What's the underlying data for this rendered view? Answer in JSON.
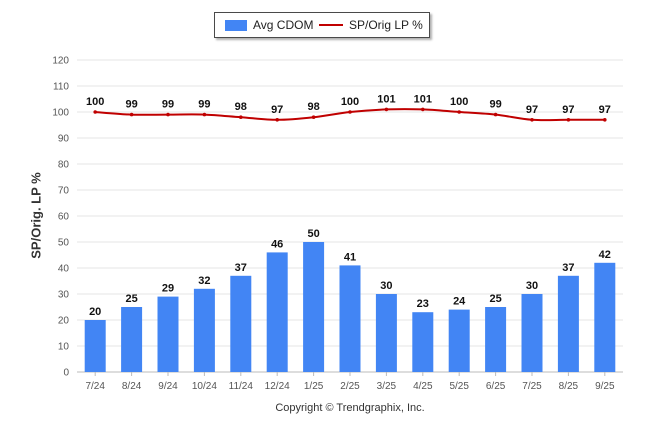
{
  "chart_data": {
    "type": "bar",
    "categories": [
      "7/24",
      "8/24",
      "9/24",
      "10/24",
      "11/24",
      "12/24",
      "1/25",
      "2/25",
      "3/25",
      "4/25",
      "5/25",
      "6/25",
      "7/25",
      "8/25",
      "9/25"
    ],
    "series": [
      {
        "name": "Avg CDOM",
        "kind": "bar",
        "color": "#4285f4",
        "values": [
          20,
          25,
          29,
          32,
          37,
          46,
          50,
          41,
          30,
          23,
          24,
          25,
          30,
          37,
          42
        ]
      },
      {
        "name": "SP/Orig LP %",
        "kind": "line",
        "color": "#c00000",
        "values": [
          100,
          99,
          99,
          99,
          98,
          97,
          98,
          100,
          101,
          101,
          100,
          99,
          97,
          97,
          97
        ]
      }
    ],
    "ylabel": "SP/Orig. LP %",
    "xlabel": "",
    "ylim": [
      0,
      120
    ],
    "yticks": [
      0,
      10,
      20,
      30,
      40,
      50,
      60,
      70,
      80,
      90,
      100,
      110,
      120
    ],
    "grid": true,
    "legend_position": "top-center"
  },
  "legend": {
    "bar_label": "Avg CDOM",
    "line_label": "SP/Orig LP %"
  },
  "footer": {
    "copyright": "Copyright © Trendgraphix, Inc."
  },
  "colors": {
    "bar": "#4285f4",
    "line": "#c00000",
    "grid": "#e6e6e6"
  }
}
